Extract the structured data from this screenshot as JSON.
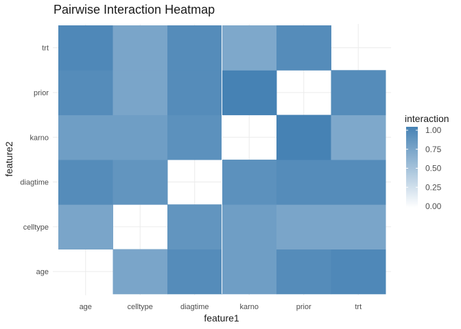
{
  "chart_data": {
    "type": "heatmap",
    "title": "Pairwise Interaction Heatmap",
    "xlabel": "feature1",
    "ylabel": "feature2",
    "x_categories": [
      "age",
      "celltype",
      "diagtime",
      "karno",
      "prior",
      "trt"
    ],
    "y_categories": [
      "age",
      "celltype",
      "diagtime",
      "karno",
      "prior",
      "trt"
    ],
    "values": [
      [
        null,
        0.72,
        0.92,
        0.78,
        0.92,
        0.95
      ],
      [
        0.72,
        null,
        0.85,
        0.78,
        0.72,
        0.72
      ],
      [
        0.92,
        0.85,
        null,
        0.88,
        0.92,
        0.92
      ],
      [
        0.78,
        0.78,
        0.88,
        null,
        1.0,
        0.7
      ],
      [
        0.92,
        0.72,
        0.92,
        1.0,
        null,
        0.92
      ],
      [
        0.95,
        0.72,
        0.92,
        0.7,
        0.92,
        null
      ]
    ],
    "legend": {
      "title": "interaction",
      "ticks": [
        "0.00",
        "0.25",
        "0.50",
        "0.75",
        "1.00"
      ],
      "range": [
        0,
        1.0
      ],
      "placement": "right"
    },
    "colors": {
      "low": "#ffffff",
      "high": "#4682b4"
    },
    "grid": true
  }
}
